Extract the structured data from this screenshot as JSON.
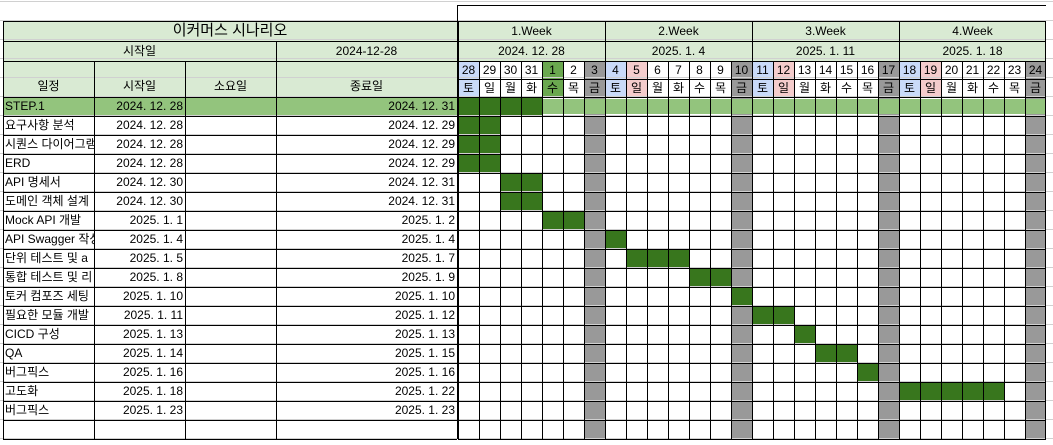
{
  "title": "이커머스 시나리오",
  "start_label": "시작일",
  "start_value": "2024-12-28",
  "headers": {
    "task": "일정",
    "start": "시작일",
    "duration": "소요일",
    "end": "종료일"
  },
  "weeks": [
    {
      "label": "1.Week",
      "date": "2024. 12. 28"
    },
    {
      "label": "2.Week",
      "date": "2025. 1. 4"
    },
    {
      "label": "3.Week",
      "date": "2025. 1. 11"
    },
    {
      "label": "4.Week",
      "date": "2025. 1. 18"
    }
  ],
  "days": [
    {
      "num": "28",
      "dow": "토",
      "kind": "sat"
    },
    {
      "num": "29",
      "dow": "일",
      "kind": "norm"
    },
    {
      "num": "30",
      "dow": "월",
      "kind": "norm"
    },
    {
      "num": "31",
      "dow": "화",
      "kind": "norm"
    },
    {
      "num": "1",
      "dow": "수",
      "kind": "today"
    },
    {
      "num": "2",
      "dow": "목",
      "kind": "norm"
    },
    {
      "num": "3",
      "dow": "금",
      "kind": "fri"
    },
    {
      "num": "4",
      "dow": "토",
      "kind": "sat"
    },
    {
      "num": "5",
      "dow": "일",
      "kind": "sun"
    },
    {
      "num": "6",
      "dow": "월",
      "kind": "norm"
    },
    {
      "num": "7",
      "dow": "화",
      "kind": "norm"
    },
    {
      "num": "8",
      "dow": "수",
      "kind": "norm"
    },
    {
      "num": "9",
      "dow": "목",
      "kind": "norm"
    },
    {
      "num": "10",
      "dow": "금",
      "kind": "fri"
    },
    {
      "num": "11",
      "dow": "토",
      "kind": "sat"
    },
    {
      "num": "12",
      "dow": "일",
      "kind": "sun"
    },
    {
      "num": "13",
      "dow": "월",
      "kind": "norm"
    },
    {
      "num": "14",
      "dow": "화",
      "kind": "norm"
    },
    {
      "num": "15",
      "dow": "수",
      "kind": "norm"
    },
    {
      "num": "16",
      "dow": "목",
      "kind": "norm"
    },
    {
      "num": "17",
      "dow": "금",
      "kind": "fri"
    },
    {
      "num": "18",
      "dow": "토",
      "kind": "sat"
    },
    {
      "num": "19",
      "dow": "일",
      "kind": "sun"
    },
    {
      "num": "20",
      "dow": "월",
      "kind": "norm"
    },
    {
      "num": "21",
      "dow": "화",
      "kind": "norm"
    },
    {
      "num": "22",
      "dow": "수",
      "kind": "norm"
    },
    {
      "num": "23",
      "dow": "목",
      "kind": "norm"
    },
    {
      "num": "24",
      "dow": "금",
      "kind": "fri"
    }
  ],
  "tasks": [
    {
      "name": "STEP.1",
      "start": "2024. 12. 28",
      "end": "2024. 12. 31",
      "step": true,
      "bar": [
        0,
        3
      ]
    },
    {
      "name": "요구사항 분석",
      "start": "2024. 12. 28",
      "end": "2024. 12. 29",
      "bar": [
        0,
        1
      ]
    },
    {
      "name": "시퀀스 다이어그램",
      "start": "2024. 12. 28",
      "end": "2024. 12. 29",
      "bar": [
        0,
        1
      ]
    },
    {
      "name": "ERD",
      "start": "2024. 12. 28",
      "end": "2024. 12. 29",
      "bar": [
        0,
        1
      ]
    },
    {
      "name": "API 명세서",
      "start": "2024. 12. 30",
      "end": "2024. 12. 31",
      "bar": [
        2,
        3
      ]
    },
    {
      "name": "도메인 객체 설계",
      "start": "2024. 12. 30",
      "end": "2024. 12. 31",
      "bar": [
        2,
        3
      ]
    },
    {
      "name": "Mock API 개발",
      "start": "2025. 1. 1",
      "end": "2025. 1. 2",
      "bar": [
        4,
        5
      ]
    },
    {
      "name": "API Swagger 작성",
      "start": "2025. 1. 4",
      "end": "2025. 1. 4",
      "bar": [
        7,
        7
      ]
    },
    {
      "name": "단위 테스트 및 a",
      "start": "2025. 1. 5",
      "end": "2025. 1. 7",
      "bar": [
        8,
        10
      ]
    },
    {
      "name": "통합 테스트 및 리",
      "start": "2025. 1. 8",
      "end": "2025. 1. 9",
      "bar": [
        11,
        12
      ]
    },
    {
      "name": "토커 컴포즈 세팅",
      "start": "2025. 1. 10",
      "end": "2025. 1. 10",
      "bar": [
        13,
        13
      ]
    },
    {
      "name": "필요한 모듈 개발",
      "start": "2025. 1. 11",
      "end": "2025. 1. 12",
      "bar": [
        14,
        15
      ]
    },
    {
      "name": "CICD 구성",
      "start": "2025. 1. 13",
      "end": "2025. 1. 13",
      "bar": [
        16,
        16
      ]
    },
    {
      "name": "QA",
      "start": "2025. 1. 14",
      "end": "2025. 1. 15",
      "bar": [
        17,
        18
      ]
    },
    {
      "name": "버그픽스",
      "start": "2025. 1. 16",
      "end": "2025. 1. 16",
      "bar": [
        19,
        19
      ]
    },
    {
      "name": "고도화",
      "start": "2025. 1. 18",
      "end": "2025. 1. 22",
      "bar": [
        21,
        25
      ]
    },
    {
      "name": "버그픽스",
      "start": "2025. 1. 23",
      "end": "2025. 1. 23",
      "bar": null
    },
    {
      "name": "",
      "start": "",
      "end": "",
      "bar": null
    }
  ],
  "colors": {
    "header_green": "#d9ead3",
    "step_green": "#93c47d",
    "bar_green": "#38761d",
    "weekend_gray": "#999999",
    "sat_blue": "#c9daf8",
    "sun_red": "#f4cccc",
    "today_green": "#6aa84f"
  }
}
